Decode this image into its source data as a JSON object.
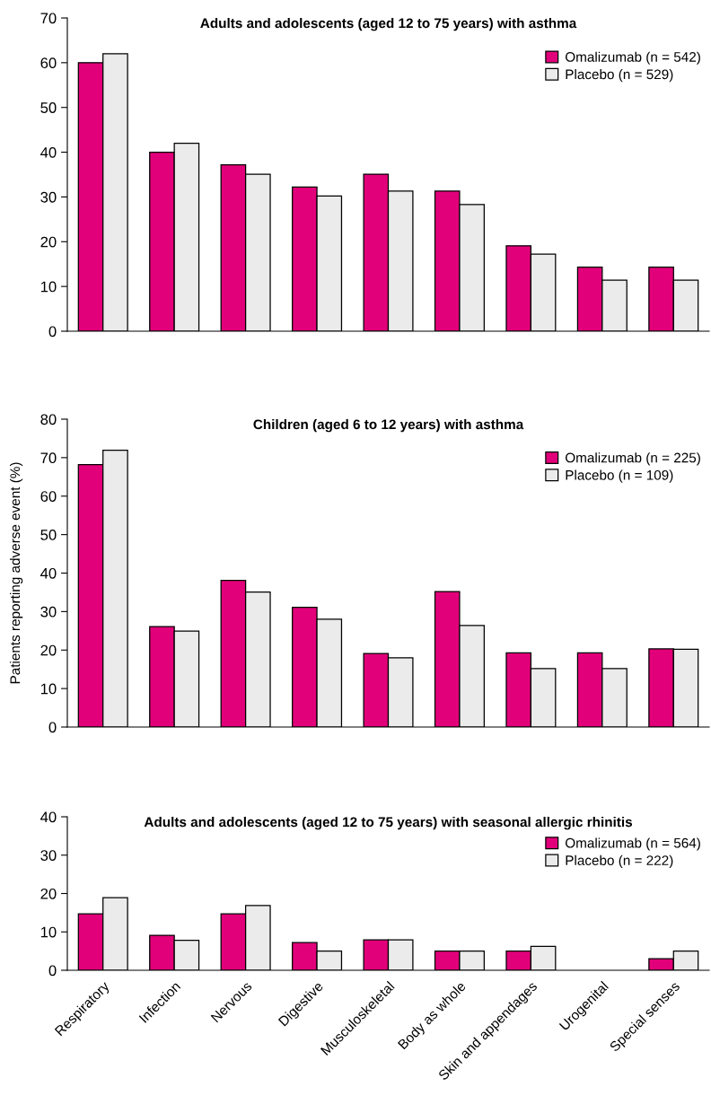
{
  "chart_data": [
    {
      "type": "bar",
      "title": "Adults and adolescents (aged 12 to 75 years) with asthma",
      "categories": [
        null,
        null,
        null,
        null,
        null,
        null,
        null,
        null,
        null
      ],
      "series": [
        {
          "name": "Omalizumab (n = 542)",
          "color": "#e2007a",
          "values": [
            60,
            40,
            37.2,
            32.2,
            35.1,
            31.3,
            19.1,
            14.3,
            14.3
          ]
        },
        {
          "name": "Placebo (n = 529)",
          "color": "#ebebeb",
          "values": [
            62,
            42,
            35.1,
            30.2,
            31.3,
            28.3,
            17.2,
            11.4,
            11.4
          ]
        }
      ],
      "ylim": [
        0,
        70
      ],
      "yticks": [
        0,
        10,
        20,
        30,
        40,
        50,
        60,
        70
      ],
      "legend": "top right",
      "tick_labels": "y",
      "grid": false
    },
    {
      "type": "bar",
      "title": "Children (aged 6 to 12 years) with asthma",
      "ylabel": "Patients reporting adverse event (%)",
      "categories": [
        null,
        null,
        null,
        null,
        null,
        null,
        null,
        null,
        null
      ],
      "series": [
        {
          "name": "Omalizumab (n = 225)",
          "color": "#e2007a",
          "values": [
            68.2,
            26.1,
            38.1,
            31.1,
            19.1,
            35.2,
            19.3,
            19.3,
            20.3
          ]
        },
        {
          "name": "Placebo (n = 109)",
          "color": "#ebebeb",
          "values": [
            71.9,
            24.9,
            35.1,
            28,
            18,
            26.4,
            15.2,
            15.2,
            20.2
          ]
        }
      ],
      "ylim": [
        0,
        80
      ],
      "yticks": [
        0,
        10,
        20,
        30,
        40,
        50,
        60,
        70,
        80
      ],
      "legend": "top right",
      "tick_labels": "y",
      "grid": false
    },
    {
      "type": "bar",
      "title": "Adults and adolescents (aged 12 to 75 years) with seasonal allergic rhinitis",
      "categories": [
        "Respiratory",
        "Infection",
        "Nervous",
        "Digestive",
        "Musculoskeletal",
        "Body as whole",
        "Skin and appendages",
        "Urogenital",
        "Special senses"
      ],
      "series": [
        {
          "name": "Omalizumab (n = 564)",
          "color": "#e2007a",
          "values": [
            14.7,
            9.1,
            14.7,
            7.2,
            7.9,
            5,
            5,
            null,
            3
          ]
        },
        {
          "name": "Placebo (n = 222)",
          "color": "#ebebeb",
          "values": [
            18.9,
            7.8,
            16.9,
            5,
            7.9,
            5,
            6.2,
            null,
            5
          ]
        }
      ],
      "ylim": [
        0,
        40
      ],
      "yticks": [
        0,
        10,
        20,
        30,
        40
      ],
      "legend": "top right",
      "grid": false
    }
  ]
}
